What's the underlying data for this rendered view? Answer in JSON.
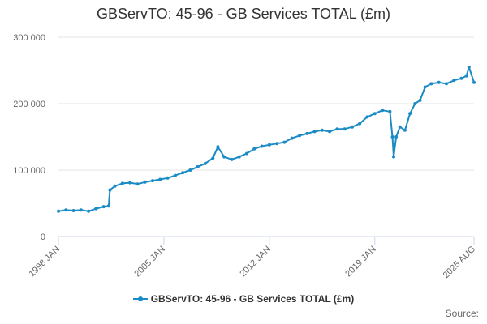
{
  "colors": {
    "series": "#1b8bc6",
    "grid": "#e6e6e6",
    "axis": "#ccd6eb",
    "text": "#666666"
  },
  "source_label": "Source:",
  "chart_data": {
    "type": "line",
    "title": "GBServTO: 45-96 - GB Services TOTAL (£m)",
    "y_tick_labels": [
      "0",
      "100 000",
      "200 000",
      "300 000"
    ],
    "y_ticks": [
      0,
      100000,
      200000,
      300000
    ],
    "ylim": [
      0,
      300000
    ],
    "x_tick_labels": [
      "1998 JAN",
      "2005 JAN",
      "2012 JAN",
      "2019 JAN",
      "2025 AUG"
    ],
    "x_ticks": [
      "1998-01",
      "2005-01",
      "2012-01",
      "2019-01",
      "2025-08"
    ],
    "xlim": [
      "1998-01",
      "2025-08"
    ],
    "grid": true,
    "legend_position": "bottom-center",
    "series": [
      {
        "name": "GBServTO: 45-96 - GB Services TOTAL (£m)",
        "points": [
          [
            "1998-01",
            38000
          ],
          [
            "1998-07",
            40000
          ],
          [
            "1999-01",
            39000
          ],
          [
            "1999-07",
            40000
          ],
          [
            "2000-01",
            38000
          ],
          [
            "2000-07",
            42000
          ],
          [
            "2001-01",
            45000
          ],
          [
            "2001-05",
            46000
          ],
          [
            "2001-06",
            70000
          ],
          [
            "2001-10",
            76000
          ],
          [
            "2002-04",
            80000
          ],
          [
            "2002-10",
            81000
          ],
          [
            "2003-04",
            79000
          ],
          [
            "2003-10",
            82000
          ],
          [
            "2004-04",
            84000
          ],
          [
            "2004-10",
            86000
          ],
          [
            "2005-04",
            88000
          ],
          [
            "2005-10",
            92000
          ],
          [
            "2006-04",
            96000
          ],
          [
            "2006-10",
            100000
          ],
          [
            "2007-04",
            105000
          ],
          [
            "2007-10",
            110000
          ],
          [
            "2008-04",
            118000
          ],
          [
            "2008-08",
            135000
          ],
          [
            "2009-01",
            120000
          ],
          [
            "2009-07",
            116000
          ],
          [
            "2010-01",
            120000
          ],
          [
            "2010-07",
            125000
          ],
          [
            "2011-01",
            132000
          ],
          [
            "2011-07",
            136000
          ],
          [
            "2012-01",
            138000
          ],
          [
            "2012-07",
            140000
          ],
          [
            "2013-01",
            142000
          ],
          [
            "2013-07",
            148000
          ],
          [
            "2014-01",
            152000
          ],
          [
            "2014-07",
            155000
          ],
          [
            "2015-01",
            158000
          ],
          [
            "2015-07",
            160000
          ],
          [
            "2016-01",
            158000
          ],
          [
            "2016-07",
            162000
          ],
          [
            "2017-01",
            162000
          ],
          [
            "2017-07",
            165000
          ],
          [
            "2018-01",
            170000
          ],
          [
            "2018-07",
            180000
          ],
          [
            "2019-01",
            185000
          ],
          [
            "2019-07",
            190000
          ],
          [
            "2020-01",
            188000
          ],
          [
            "2020-03",
            150000
          ],
          [
            "2020-04",
            120000
          ],
          [
            "2020-06",
            150000
          ],
          [
            "2020-09",
            165000
          ],
          [
            "2021-01",
            160000
          ],
          [
            "2021-05",
            185000
          ],
          [
            "2021-09",
            200000
          ],
          [
            "2022-01",
            205000
          ],
          [
            "2022-05",
            225000
          ],
          [
            "2022-10",
            230000
          ],
          [
            "2023-04",
            232000
          ],
          [
            "2023-10",
            230000
          ],
          [
            "2024-04",
            235000
          ],
          [
            "2024-10",
            238000
          ],
          [
            "2025-02",
            242000
          ],
          [
            "2025-04",
            255000
          ],
          [
            "2025-08",
            232000
          ]
        ]
      }
    ]
  }
}
